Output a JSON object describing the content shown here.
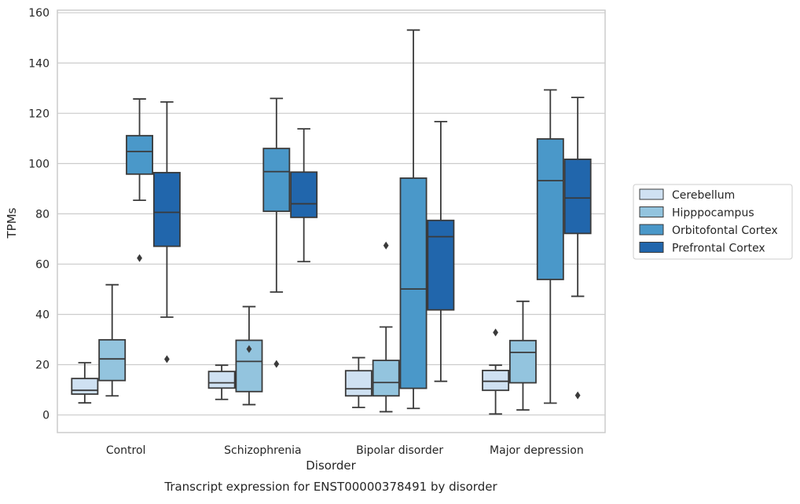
{
  "chart_data": {
    "type": "box",
    "xlabel": "Disorder",
    "ylabel": "TPMs",
    "caption": "Transcript expression for ENST00000378491 by disorder",
    "ylim": [
      -7,
      161
    ],
    "yticks": [
      0,
      20,
      40,
      60,
      80,
      100,
      120,
      140,
      160
    ],
    "grid": "horizontal",
    "legend_position": "right",
    "categories": [
      "Control",
      "Schizophrenia",
      "Bipolar disorder",
      "Major depression"
    ],
    "series": [
      {
        "name": "Cerebellum",
        "color": "#cfe1f2",
        "boxes": [
          {
            "whisker_low": 4.8,
            "q1": 8.3,
            "median": 9.8,
            "q3": 14.5,
            "whisker_high": 20.8,
            "outliers": []
          },
          {
            "whisker_low": 6.2,
            "q1": 10.7,
            "median": 12.8,
            "q3": 17.3,
            "whisker_high": 19.8,
            "outliers": []
          },
          {
            "whisker_low": 3.0,
            "q1": 7.6,
            "median": 10.4,
            "q3": 17.6,
            "whisker_high": 22.8,
            "outliers": []
          },
          {
            "whisker_low": 0.4,
            "q1": 9.8,
            "median": 13.4,
            "q3": 17.7,
            "whisker_high": 19.8,
            "outliers": [
              32.8
            ]
          }
        ]
      },
      {
        "name": "Hipppocampus",
        "color": "#93c4de",
        "boxes": [
          {
            "whisker_low": 7.6,
            "q1": 13.7,
            "median": 22.3,
            "q3": 29.9,
            "whisker_high": 51.8,
            "outliers": []
          },
          {
            "whisker_low": 4.1,
            "q1": 9.3,
            "median": 21.3,
            "q3": 29.7,
            "whisker_high": 43.1,
            "outliers": [
              26.2
            ]
          },
          {
            "whisker_low": 1.3,
            "q1": 7.6,
            "median": 12.9,
            "q3": 21.7,
            "whisker_high": 35.0,
            "outliers": [
              67.4
            ]
          },
          {
            "whisker_low": 2.0,
            "q1": 12.8,
            "median": 24.9,
            "q3": 29.6,
            "whisker_high": 45.2,
            "outliers": []
          }
        ]
      },
      {
        "name": "Orbitofontal Cortex",
        "color": "#4a98c9",
        "boxes": [
          {
            "whisker_low": 85.4,
            "q1": 95.8,
            "median": 104.8,
            "q3": 111.1,
            "whisker_high": 125.7,
            "outliers": [
              62.4
            ]
          },
          {
            "whisker_low": 48.9,
            "q1": 81.0,
            "median": 96.8,
            "q3": 106.0,
            "whisker_high": 125.9,
            "outliers": [
              20.3
            ]
          },
          {
            "whisker_low": 2.6,
            "q1": 10.6,
            "median": 50.1,
            "q3": 94.2,
            "whisker_high": 153.1,
            "outliers": []
          },
          {
            "whisker_low": 4.7,
            "q1": 53.9,
            "median": 93.2,
            "q3": 109.8,
            "whisker_high": 129.3,
            "outliers": []
          }
        ]
      },
      {
        "name": "Prefrontal Cortex",
        "color": "#2166ac",
        "boxes": [
          {
            "whisker_low": 38.9,
            "q1": 67.1,
            "median": 80.6,
            "q3": 96.4,
            "whisker_high": 124.5,
            "outliers": [
              22.2
            ]
          },
          {
            "whisker_low": 61.0,
            "q1": 78.6,
            "median": 84.0,
            "q3": 96.6,
            "whisker_high": 113.8,
            "outliers": []
          },
          {
            "whisker_low": 13.4,
            "q1": 41.8,
            "median": 70.9,
            "q3": 77.4,
            "whisker_high": 116.7,
            "outliers": []
          },
          {
            "whisker_low": 47.2,
            "q1": 72.2,
            "median": 86.3,
            "q3": 101.7,
            "whisker_high": 126.3,
            "outliers": [
              7.8
            ]
          }
        ]
      }
    ]
  }
}
